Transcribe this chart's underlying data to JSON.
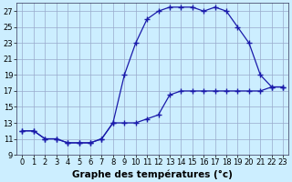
{
  "xlabel": "Graphe des températures (°c)",
  "xlim": [
    -0.5,
    23.5
  ],
  "ylim": [
    9,
    28
  ],
  "yticks": [
    9,
    11,
    13,
    15,
    17,
    19,
    21,
    23,
    25,
    27
  ],
  "xticks": [
    0,
    1,
    2,
    3,
    4,
    5,
    6,
    7,
    8,
    9,
    10,
    11,
    12,
    13,
    14,
    15,
    16,
    17,
    18,
    19,
    20,
    21,
    22,
    23
  ],
  "line1_x": [
    0,
    1,
    2,
    3,
    4,
    5,
    6,
    7,
    8,
    9,
    10,
    11,
    12,
    13,
    14,
    15,
    16,
    17,
    18,
    19,
    20,
    21,
    22,
    23
  ],
  "line1_y": [
    12,
    12,
    11,
    11,
    10.5,
    10.5,
    10.5,
    11,
    13,
    19,
    23,
    26,
    27,
    27.5,
    27.5,
    27.5,
    27,
    27.5,
    27,
    25,
    23,
    19,
    17.5,
    17.5
  ],
  "line2_x": [
    0,
    1,
    2,
    3,
    4,
    5,
    6,
    7,
    8,
    9,
    10,
    11,
    12,
    13,
    14,
    15,
    16,
    17,
    18,
    19,
    20,
    21,
    22,
    23
  ],
  "line2_y": [
    12,
    12,
    11,
    11,
    10.5,
    10.5,
    10.5,
    11,
    13,
    13,
    13,
    13.5,
    14,
    16.5,
    17,
    17,
    17,
    17,
    17,
    17,
    17,
    17,
    17.5,
    17.5
  ],
  "line_color": "#1a1aaa",
  "marker": "+",
  "marker_size": 4,
  "marker_lw": 1.0,
  "line_width": 0.9,
  "bg_color": "#cceeff",
  "grid_color": "#99aacc",
  "tick_fontsize": 6,
  "xlabel_fontsize": 7.5
}
